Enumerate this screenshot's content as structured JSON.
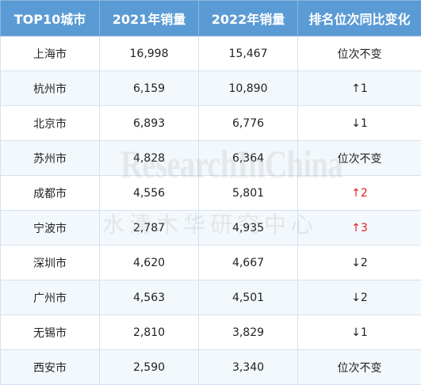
{
  "table": {
    "headers": [
      "TOP10城市",
      "2021年销量",
      "2022年销量",
      "排名位次同比变化"
    ],
    "rows": [
      {
        "city": "上海市",
        "sales_2021": "16,998",
        "sales_2022": "15,467",
        "change": "位次不变",
        "highlight": false
      },
      {
        "city": "杭州市",
        "sales_2021": "6,159",
        "sales_2022": "10,890",
        "change": "↑1",
        "highlight": false
      },
      {
        "city": "北京市",
        "sales_2021": "6,893",
        "sales_2022": "6,776",
        "change": "↓1",
        "highlight": false
      },
      {
        "city": "苏州市",
        "sales_2021": "4,828",
        "sales_2022": "6,364",
        "change": "位次不变",
        "highlight": false
      },
      {
        "city": "成都市",
        "sales_2021": "4,556",
        "sales_2022": "5,801",
        "change": "↑2",
        "highlight": true
      },
      {
        "city": "宁波市",
        "sales_2021": "2,787",
        "sales_2022": "4,935",
        "change": "↑3",
        "highlight": true
      },
      {
        "city": "深圳市",
        "sales_2021": "4,620",
        "sales_2022": "4,667",
        "change": "↓2",
        "highlight": false
      },
      {
        "city": "广州市",
        "sales_2021": "4,563",
        "sales_2022": "4,501",
        "change": "↓2",
        "highlight": false
      },
      {
        "city": "无锡市",
        "sales_2021": "2,810",
        "sales_2022": "3,829",
        "change": "↓1",
        "highlight": false
      },
      {
        "city": "西安市",
        "sales_2021": "2,590",
        "sales_2022": "3,340",
        "change": "位次不变",
        "highlight": false
      }
    ]
  },
  "colors": {
    "header_bg": "#5b9bd5",
    "header_text": "#ffffff",
    "alt_row_bg": "#f3f8fc",
    "rank_up_highlight": "#e02020"
  },
  "watermark": {
    "text_en": "ResearchInChina",
    "text_cn": "水清木华研究中心"
  }
}
